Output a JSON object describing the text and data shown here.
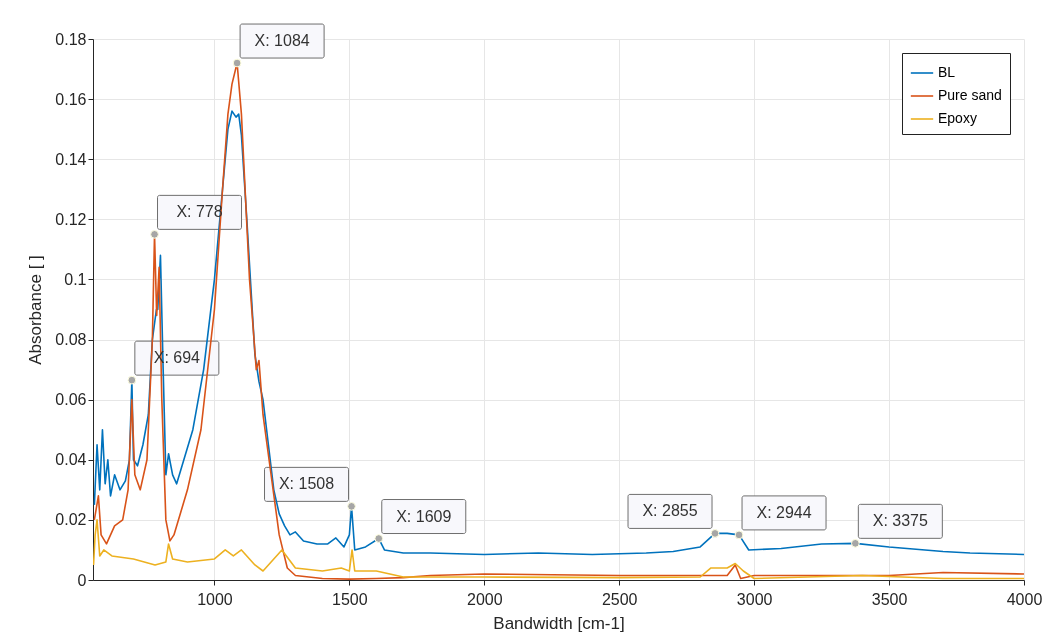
{
  "chart_data": {
    "type": "line",
    "xlabel": "Bandwidth [cm-1]",
    "ylabel": "Absorbance [ ]",
    "xlim": [
      550,
      4000
    ],
    "xticks": [
      1000,
      1500,
      2000,
      2500,
      3000,
      3500,
      4000
    ],
    "ylim": [
      0,
      0.18
    ],
    "yticks": [
      0,
      0.02,
      0.04,
      0.06,
      0.08,
      0.1,
      0.12,
      0.14,
      0.16,
      0.18
    ],
    "grid": true,
    "legend": "top right",
    "series": [
      {
        "name": "BL",
        "color": "#0072bd",
        "x": [
          555,
          565,
          575,
          585,
          595,
          605,
          615,
          630,
          650,
          670,
          685,
          694,
          700,
          715,
          735,
          755,
          770,
          785,
          790,
          800,
          810,
          820,
          830,
          845,
          860,
          880,
          920,
          960,
          1000,
          1030,
          1050,
          1065,
          1080,
          1090,
          1100,
          1120,
          1150,
          1165,
          1180,
          1200,
          1220,
          1240,
          1260,
          1280,
          1300,
          1330,
          1380,
          1420,
          1450,
          1480,
          1500,
          1508,
          1520,
          1560,
          1609,
          1630,
          1700,
          1800,
          2000,
          2200,
          2400,
          2600,
          2700,
          2800,
          2855,
          2900,
          2944,
          2980,
          3100,
          3250,
          3375,
          3500,
          3700,
          3800,
          4000
        ],
        "values": [
          0.025,
          0.045,
          0.03,
          0.05,
          0.032,
          0.04,
          0.028,
          0.035,
          0.03,
          0.033,
          0.04,
          0.0665,
          0.04,
          0.038,
          0.045,
          0.055,
          0.08,
          0.09,
          0.09,
          0.108,
          0.07,
          0.035,
          0.042,
          0.035,
          0.032,
          0.038,
          0.05,
          0.07,
          0.1,
          0.13,
          0.15,
          0.156,
          0.154,
          0.155,
          0.148,
          0.12,
          0.075,
          0.066,
          0.06,
          0.045,
          0.03,
          0.022,
          0.018,
          0.015,
          0.016,
          0.013,
          0.012,
          0.012,
          0.014,
          0.011,
          0.015,
          0.0245,
          0.01,
          0.011,
          0.0138,
          0.01,
          0.009,
          0.009,
          0.0085,
          0.009,
          0.0085,
          0.009,
          0.0095,
          0.011,
          0.0155,
          0.0155,
          0.015,
          0.01,
          0.0105,
          0.012,
          0.0122,
          0.011,
          0.0095,
          0.009,
          0.0085
        ]
      },
      {
        "name": "Pure sand",
        "color": "#d95319",
        "x": [
          555,
          570,
          580,
          600,
          630,
          660,
          680,
          694,
          705,
          725,
          750,
          770,
          778,
          786,
          795,
          805,
          820,
          835,
          850,
          900,
          950,
          1000,
          1030,
          1050,
          1065,
          1084,
          1100,
          1130,
          1155,
          1165,
          1180,
          1210,
          1240,
          1270,
          1300,
          1400,
          1500,
          1600,
          1700,
          1800,
          2000,
          2500,
          2900,
          2930,
          2950,
          3000,
          3500,
          3700,
          4000
        ],
        "values": [
          0.02,
          0.028,
          0.015,
          0.012,
          0.018,
          0.02,
          0.03,
          0.06,
          0.035,
          0.03,
          0.04,
          0.08,
          0.115,
          0.088,
          0.104,
          0.06,
          0.02,
          0.013,
          0.015,
          0.03,
          0.05,
          0.09,
          0.13,
          0.155,
          0.165,
          0.172,
          0.155,
          0.1,
          0.07,
          0.073,
          0.055,
          0.035,
          0.015,
          0.004,
          0.0015,
          0.0005,
          0.0003,
          0.0005,
          0.0008,
          0.0015,
          0.002,
          0.0015,
          0.0015,
          0.005,
          0.0005,
          0.0015,
          0.0015,
          0.0025,
          0.002
        ]
      },
      {
        "name": "Epoxy",
        "color": "#edb120",
        "x": [
          552,
          558,
          565,
          575,
          590,
          620,
          700,
          780,
          820,
          830,
          845,
          900,
          1000,
          1040,
          1070,
          1100,
          1150,
          1180,
          1250,
          1300,
          1400,
          1470,
          1500,
          1510,
          1520,
          1600,
          1700,
          2000,
          2500,
          2800,
          2840,
          2900,
          2930,
          2960,
          3000,
          3400,
          3700,
          4000
        ],
        "values": [
          0.005,
          0.015,
          0.02,
          0.008,
          0.01,
          0.008,
          0.007,
          0.005,
          0.006,
          0.012,
          0.007,
          0.006,
          0.007,
          0.01,
          0.008,
          0.01,
          0.005,
          0.003,
          0.01,
          0.004,
          0.003,
          0.004,
          0.003,
          0.01,
          0.003,
          0.003,
          0.001,
          0.001,
          0.0008,
          0.001,
          0.004,
          0.004,
          0.0055,
          0.003,
          0.0005,
          0.0015,
          0.0005,
          0.0005
        ]
      }
    ],
    "annotations": [
      {
        "text": "X: 694",
        "x": 694,
        "y": 0.0665
      },
      {
        "text": "X: 778",
        "x": 778,
        "y": 0.115
      },
      {
        "text": "X: 1084",
        "x": 1084,
        "y": 0.172
      },
      {
        "text": "X: 1508",
        "x": 1508,
        "y": 0.0245
      },
      {
        "text": "X: 1609",
        "x": 1609,
        "y": 0.0138
      },
      {
        "text": "X: 2855",
        "x": 2855,
        "y": 0.0155
      },
      {
        "text": "X: 2944",
        "x": 2944,
        "y": 0.015
      },
      {
        "text": "X: 3375",
        "x": 3375,
        "y": 0.0122
      }
    ]
  }
}
